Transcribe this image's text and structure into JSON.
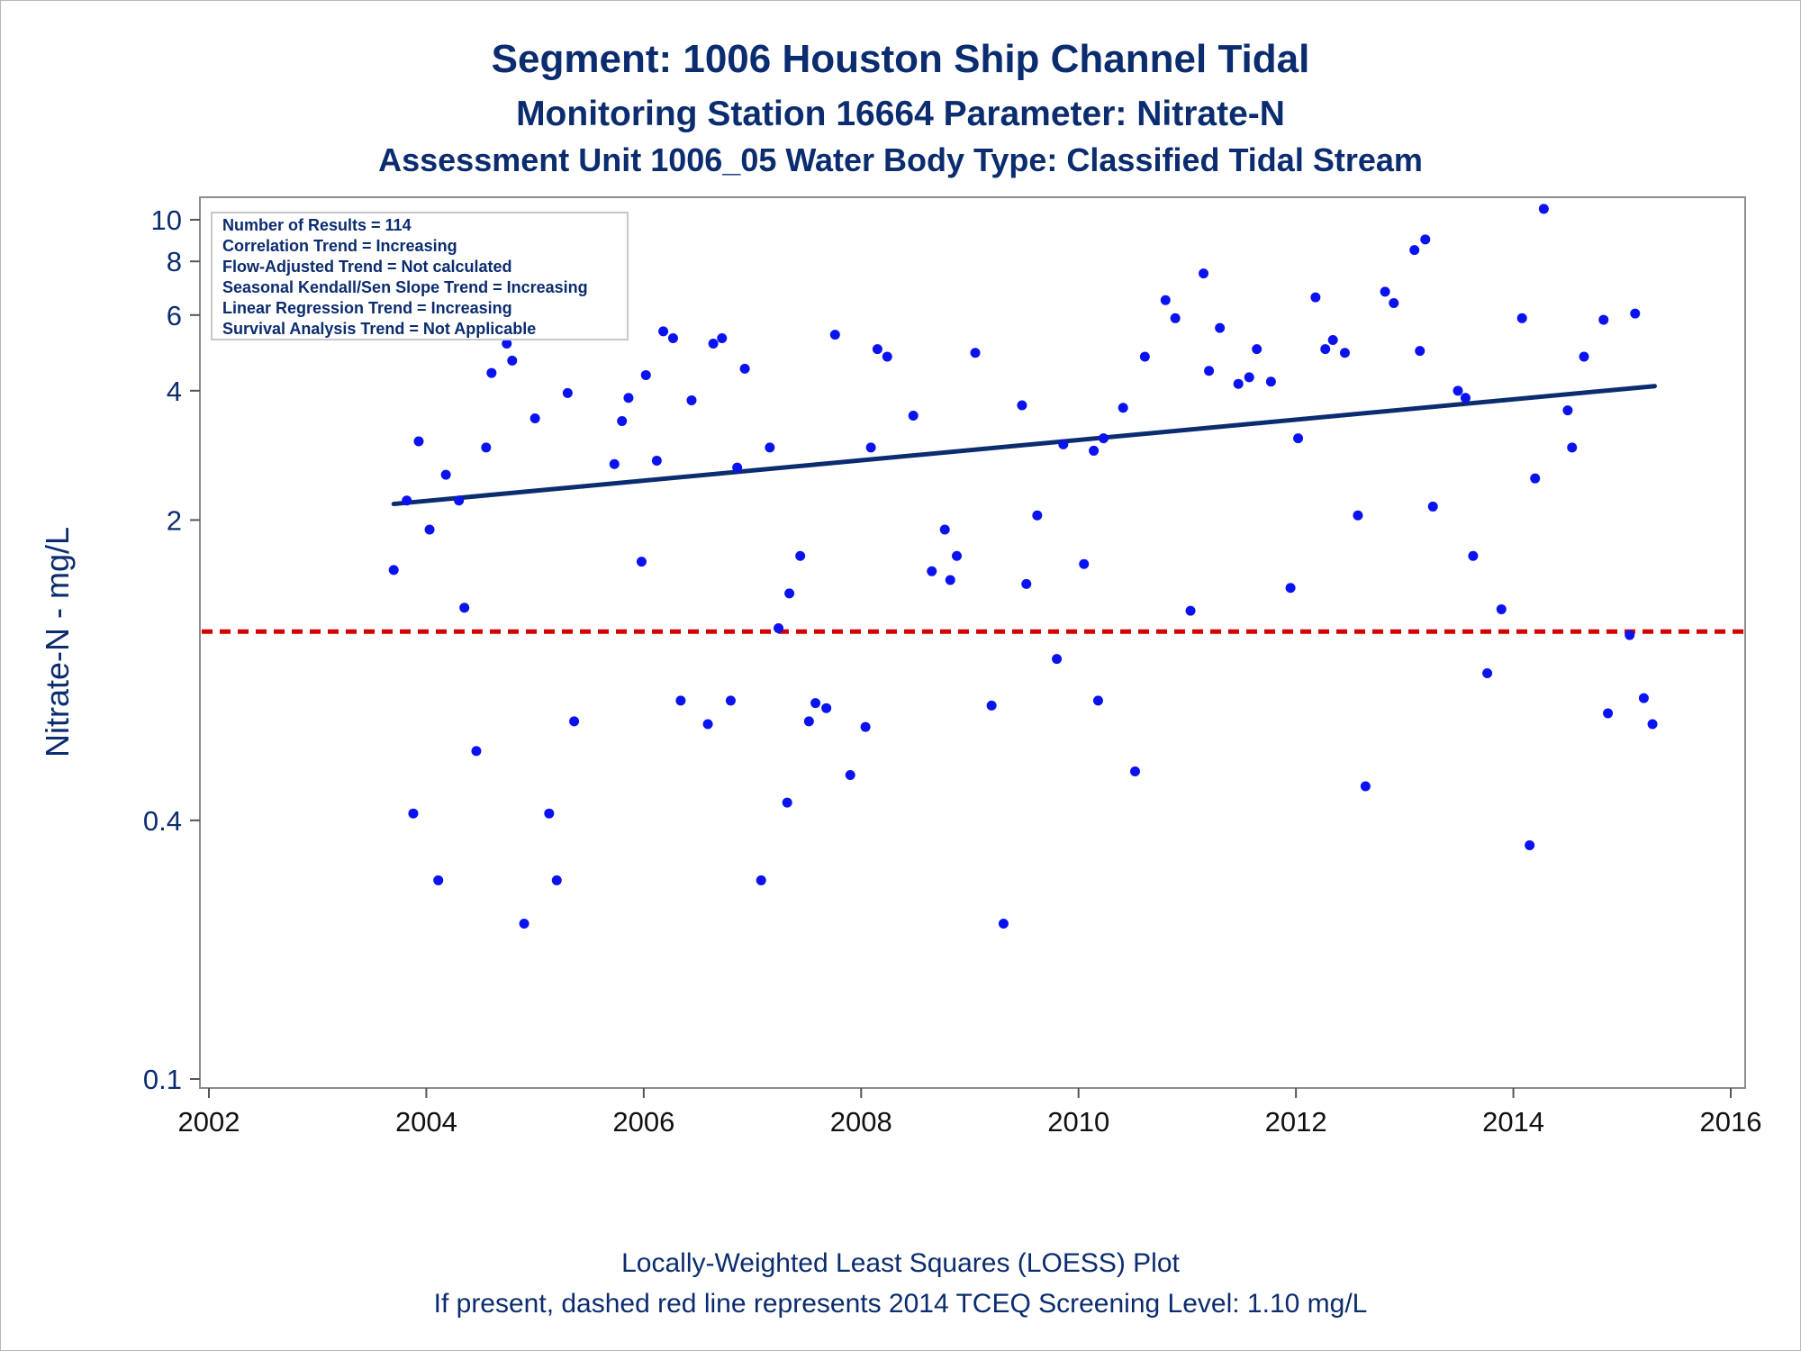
{
  "titles": {
    "line1": "Segment: 1006  Houston Ship Channel Tidal",
    "line2": "Monitoring Station 16664 Parameter: Nitrate-N",
    "line3": "Assessment Unit 1006_05   Water Body Type: Classified Tidal Stream"
  },
  "footnotes": {
    "line1": "Locally-Weighted Least Squares (LOESS) Plot",
    "line2": "If present, dashed red line represents 2014 TCEQ Screening Level: 1.10 mg/L"
  },
  "legend": [
    "Number of Results = 114",
    "Correlation Trend = Increasing",
    "Flow-Adjusted Trend = Not calculated",
    "Seasonal Kendall/Sen Slope Trend = Increasing",
    "Linear Regression Trend = Increasing",
    "Survival Analysis Trend = Not Applicable"
  ],
  "colors": {
    "points": "#0a12f0",
    "trend": "#0b2c6f",
    "screening": "#d40000",
    "text": "#0b2c6f"
  },
  "chart_data": {
    "type": "scatter",
    "ylabel": "Nitrate-N - mg/L",
    "xlabel": "",
    "x_ticks": [
      "2002",
      "2004",
      "2006",
      "2008",
      "2010",
      "2012",
      "2014",
      "2016"
    ],
    "y_ticks": [
      "0.1",
      "0.4",
      "2",
      "4",
      "6",
      "8",
      "10"
    ],
    "y_tick_values": [
      0.1,
      0.4,
      2,
      4,
      6,
      8,
      10
    ],
    "xlim": [
      2002,
      2016
    ],
    "ylim": [
      0.08,
      12
    ],
    "y_scale": "log",
    "screening_level": 1.1,
    "trend_line": [
      {
        "x": 2003.7,
        "y": 2.18
      },
      {
        "x": 2015.3,
        "y": 4.1
      }
    ],
    "points": [
      {
        "x": 2003.7,
        "y": 1.53
      },
      {
        "x": 2003.82,
        "y": 2.22
      },
      {
        "x": 2003.88,
        "y": 0.415
      },
      {
        "x": 2003.93,
        "y": 3.05
      },
      {
        "x": 2004.03,
        "y": 1.9
      },
      {
        "x": 2004.11,
        "y": 0.29
      },
      {
        "x": 2004.18,
        "y": 2.55
      },
      {
        "x": 2004.3,
        "y": 2.22
      },
      {
        "x": 2004.35,
        "y": 1.25
      },
      {
        "x": 2004.46,
        "y": 0.58
      },
      {
        "x": 2004.55,
        "y": 2.95
      },
      {
        "x": 2004.6,
        "y": 4.4
      },
      {
        "x": 2004.74,
        "y": 5.15
      },
      {
        "x": 2004.79,
        "y": 4.7
      },
      {
        "x": 2004.9,
        "y": 0.23
      },
      {
        "x": 2005.0,
        "y": 3.45
      },
      {
        "x": 2005.1,
        "y": 6.2
      },
      {
        "x": 2005.13,
        "y": 0.415
      },
      {
        "x": 2005.2,
        "y": 0.29
      },
      {
        "x": 2005.3,
        "y": 3.95
      },
      {
        "x": 2005.36,
        "y": 0.68
      },
      {
        "x": 2005.73,
        "y": 2.7
      },
      {
        "x": 2005.8,
        "y": 3.4
      },
      {
        "x": 2005.86,
        "y": 3.85
      },
      {
        "x": 2005.98,
        "y": 1.6
      },
      {
        "x": 2006.02,
        "y": 4.35
      },
      {
        "x": 2006.12,
        "y": 2.75
      },
      {
        "x": 2006.18,
        "y": 5.5
      },
      {
        "x": 2006.27,
        "y": 5.3
      },
      {
        "x": 2006.34,
        "y": 0.76
      },
      {
        "x": 2006.44,
        "y": 3.8
      },
      {
        "x": 2006.59,
        "y": 0.67
      },
      {
        "x": 2006.64,
        "y": 5.15
      },
      {
        "x": 2006.72,
        "y": 5.3
      },
      {
        "x": 2006.8,
        "y": 0.76
      },
      {
        "x": 2006.86,
        "y": 2.65
      },
      {
        "x": 2006.93,
        "y": 4.5
      },
      {
        "x": 2007.08,
        "y": 0.29
      },
      {
        "x": 2007.16,
        "y": 2.95
      },
      {
        "x": 2007.24,
        "y": 1.12
      },
      {
        "x": 2007.32,
        "y": 0.44
      },
      {
        "x": 2007.34,
        "y": 1.35
      },
      {
        "x": 2007.44,
        "y": 1.65
      },
      {
        "x": 2007.52,
        "y": 0.68
      },
      {
        "x": 2007.58,
        "y": 0.75
      },
      {
        "x": 2007.68,
        "y": 0.73
      },
      {
        "x": 2007.76,
        "y": 5.4
      },
      {
        "x": 2007.9,
        "y": 0.51
      },
      {
        "x": 2008.04,
        "y": 0.66
      },
      {
        "x": 2008.09,
        "y": 2.95
      },
      {
        "x": 2008.15,
        "y": 5.0
      },
      {
        "x": 2008.24,
        "y": 4.8
      },
      {
        "x": 2008.48,
        "y": 3.5
      },
      {
        "x": 2008.65,
        "y": 1.52
      },
      {
        "x": 2008.77,
        "y": 1.9
      },
      {
        "x": 2008.82,
        "y": 1.45
      },
      {
        "x": 2008.88,
        "y": 1.65
      },
      {
        "x": 2009.05,
        "y": 4.9
      },
      {
        "x": 2009.2,
        "y": 0.74
      },
      {
        "x": 2009.31,
        "y": 0.23
      },
      {
        "x": 2009.48,
        "y": 3.7
      },
      {
        "x": 2009.52,
        "y": 1.42
      },
      {
        "x": 2009.62,
        "y": 2.05
      },
      {
        "x": 2009.8,
        "y": 0.95
      },
      {
        "x": 2009.86,
        "y": 3.0
      },
      {
        "x": 2010.05,
        "y": 1.58
      },
      {
        "x": 2010.14,
        "y": 2.9
      },
      {
        "x": 2010.18,
        "y": 0.76
      },
      {
        "x": 2010.23,
        "y": 3.1
      },
      {
        "x": 2010.41,
        "y": 3.65
      },
      {
        "x": 2010.52,
        "y": 0.52
      },
      {
        "x": 2010.61,
        "y": 4.8
      },
      {
        "x": 2010.8,
        "y": 6.5
      },
      {
        "x": 2010.89,
        "y": 5.9
      },
      {
        "x": 2011.03,
        "y": 1.23
      },
      {
        "x": 2011.15,
        "y": 7.5
      },
      {
        "x": 2011.2,
        "y": 4.45
      },
      {
        "x": 2011.3,
        "y": 5.6
      },
      {
        "x": 2011.47,
        "y": 4.15
      },
      {
        "x": 2011.57,
        "y": 4.3
      },
      {
        "x": 2011.64,
        "y": 5.0
      },
      {
        "x": 2011.77,
        "y": 4.2
      },
      {
        "x": 2011.95,
        "y": 1.39
      },
      {
        "x": 2012.02,
        "y": 3.1
      },
      {
        "x": 2012.18,
        "y": 6.6
      },
      {
        "x": 2012.27,
        "y": 5.0
      },
      {
        "x": 2012.34,
        "y": 5.25
      },
      {
        "x": 2012.45,
        "y": 4.9
      },
      {
        "x": 2012.57,
        "y": 2.05
      },
      {
        "x": 2012.64,
        "y": 0.48
      },
      {
        "x": 2012.82,
        "y": 6.8
      },
      {
        "x": 2012.9,
        "y": 6.4
      },
      {
        "x": 2013.09,
        "y": 8.5
      },
      {
        "x": 2013.14,
        "y": 4.95
      },
      {
        "x": 2013.19,
        "y": 9.0
      },
      {
        "x": 2013.26,
        "y": 2.15
      },
      {
        "x": 2013.49,
        "y": 4.0
      },
      {
        "x": 2013.56,
        "y": 3.85
      },
      {
        "x": 2013.63,
        "y": 1.65
      },
      {
        "x": 2013.76,
        "y": 0.88
      },
      {
        "x": 2013.89,
        "y": 1.24
      },
      {
        "x": 2014.08,
        "y": 5.9
      },
      {
        "x": 2014.15,
        "y": 0.35
      },
      {
        "x": 2014.2,
        "y": 2.5
      },
      {
        "x": 2014.28,
        "y": 10.6
      },
      {
        "x": 2014.5,
        "y": 3.6
      },
      {
        "x": 2014.54,
        "y": 2.95
      },
      {
        "x": 2014.65,
        "y": 4.8
      },
      {
        "x": 2014.83,
        "y": 5.85
      },
      {
        "x": 2014.87,
        "y": 0.71
      },
      {
        "x": 2015.07,
        "y": 1.08
      },
      {
        "x": 2015.12,
        "y": 6.05
      },
      {
        "x": 2015.2,
        "y": 0.77
      },
      {
        "x": 2015.28,
        "y": 0.67
      }
    ]
  }
}
